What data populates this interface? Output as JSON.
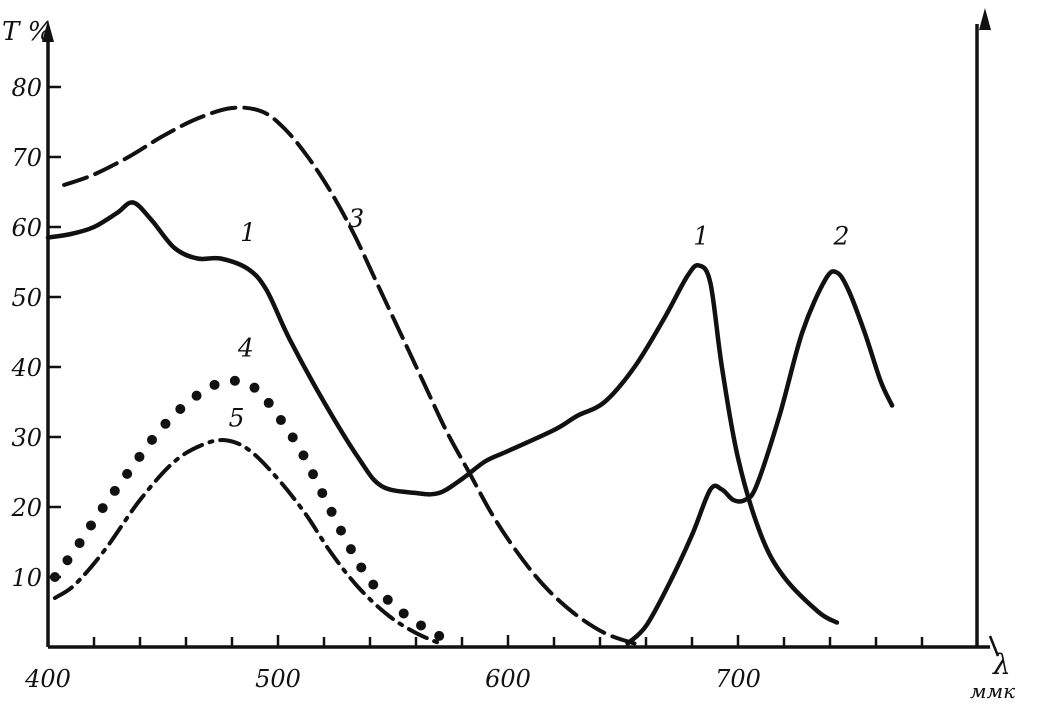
{
  "chart_data": {
    "type": "line",
    "title": "",
    "ylabel": "T %",
    "xlabel_symbol": "λ",
    "xlabel_unit": "ммк",
    "xlim": [
      400,
      800
    ],
    "ylim": [
      0,
      80
    ],
    "x_ticks": [
      400,
      500,
      600,
      700
    ],
    "y_ticks": [
      10,
      20,
      30,
      40,
      50,
      60,
      70,
      80
    ],
    "grid": false,
    "right_axis": true,
    "series": [
      {
        "name": "1",
        "style": "solid",
        "points": [
          [
            400,
            58.5
          ],
          [
            410,
            59
          ],
          [
            420,
            60
          ],
          [
            430,
            62
          ],
          [
            437,
            63.5
          ],
          [
            445,
            61
          ],
          [
            455,
            57
          ],
          [
            465,
            55.5
          ],
          [
            475,
            55.5
          ],
          [
            487,
            54
          ],
          [
            495,
            51
          ],
          [
            505,
            44
          ],
          [
            520,
            35
          ],
          [
            535,
            27
          ],
          [
            545,
            23
          ],
          [
            560,
            22
          ],
          [
            570,
            22
          ],
          [
            580,
            24
          ],
          [
            590,
            26.5
          ],
          [
            600,
            28
          ],
          [
            620,
            31
          ],
          [
            630,
            33
          ],
          [
            642,
            35
          ],
          [
            655,
            40
          ],
          [
            668,
            47
          ],
          [
            678,
            53
          ],
          [
            683,
            54.5
          ],
          [
            688,
            52
          ],
          [
            693,
            40
          ],
          [
            700,
            27
          ],
          [
            710,
            16
          ],
          [
            720,
            10
          ],
          [
            735,
            5
          ],
          [
            743,
            3.5
          ]
        ],
        "labels": [
          {
            "text": "1",
            "x": 487,
            "y": 58
          },
          {
            "text": "1",
            "x": 684,
            "y": 57.5
          }
        ]
      },
      {
        "name": "2",
        "style": "solid",
        "points": [
          [
            652,
            0.5
          ],
          [
            660,
            3
          ],
          [
            670,
            9
          ],
          [
            680,
            16
          ],
          [
            688,
            22.5
          ],
          [
            693,
            22.5
          ],
          [
            698,
            21
          ],
          [
            703,
            21
          ],
          [
            708,
            23
          ],
          [
            718,
            33
          ],
          [
            728,
            45
          ],
          [
            738,
            52.5
          ],
          [
            743,
            53.5
          ],
          [
            748,
            51
          ],
          [
            755,
            45
          ],
          [
            762,
            38
          ],
          [
            767,
            34.5
          ]
        ],
        "labels": [
          {
            "text": "2",
            "x": 745,
            "y": 57.5
          }
        ]
      },
      {
        "name": "3",
        "style": "dashed",
        "points": [
          [
            407,
            66
          ],
          [
            420,
            67.5
          ],
          [
            435,
            70
          ],
          [
            450,
            73
          ],
          [
            465,
            75.5
          ],
          [
            480,
            77
          ],
          [
            493,
            76.5
          ],
          [
            503,
            74
          ],
          [
            513,
            70
          ],
          [
            523,
            65
          ],
          [
            533,
            59
          ],
          [
            543,
            52
          ],
          [
            553,
            45
          ],
          [
            563,
            38
          ],
          [
            573,
            31
          ],
          [
            583,
            25
          ],
          [
            593,
            19
          ],
          [
            603,
            14
          ],
          [
            615,
            9
          ],
          [
            628,
            5
          ],
          [
            642,
            2
          ],
          [
            655,
            0.5
          ]
        ],
        "labels": [
          {
            "text": "3",
            "x": 534,
            "y": 60
          }
        ]
      },
      {
        "name": "4",
        "style": "dotted",
        "points": [
          [
            403,
            10
          ],
          [
            412,
            14
          ],
          [
            422,
            19
          ],
          [
            435,
            25
          ],
          [
            450,
            31.5
          ],
          [
            465,
            36
          ],
          [
            478,
            38
          ],
          [
            490,
            37
          ],
          [
            500,
            33
          ],
          [
            510,
            28
          ],
          [
            520,
            21.5
          ],
          [
            530,
            15
          ],
          [
            540,
            9.5
          ],
          [
            552,
            5.5
          ],
          [
            565,
            2.5
          ],
          [
            578,
            0.3
          ]
        ],
        "labels": [
          {
            "text": "4",
            "x": 486,
            "y": 41.5
          }
        ]
      },
      {
        "name": "5",
        "style": "dashdot",
        "points": [
          [
            403,
            7
          ],
          [
            412,
            9
          ],
          [
            425,
            14
          ],
          [
            440,
            21
          ],
          [
            455,
            26.5
          ],
          [
            468,
            29
          ],
          [
            478,
            29.5
          ],
          [
            488,
            28
          ],
          [
            500,
            24
          ],
          [
            512,
            19
          ],
          [
            523,
            13.5
          ],
          [
            535,
            8.5
          ],
          [
            548,
            4.5
          ],
          [
            560,
            2
          ],
          [
            572,
            0.3
          ]
        ],
        "labels": [
          {
            "text": "5",
            "x": 482,
            "y": 31.5
          }
        ]
      }
    ]
  }
}
